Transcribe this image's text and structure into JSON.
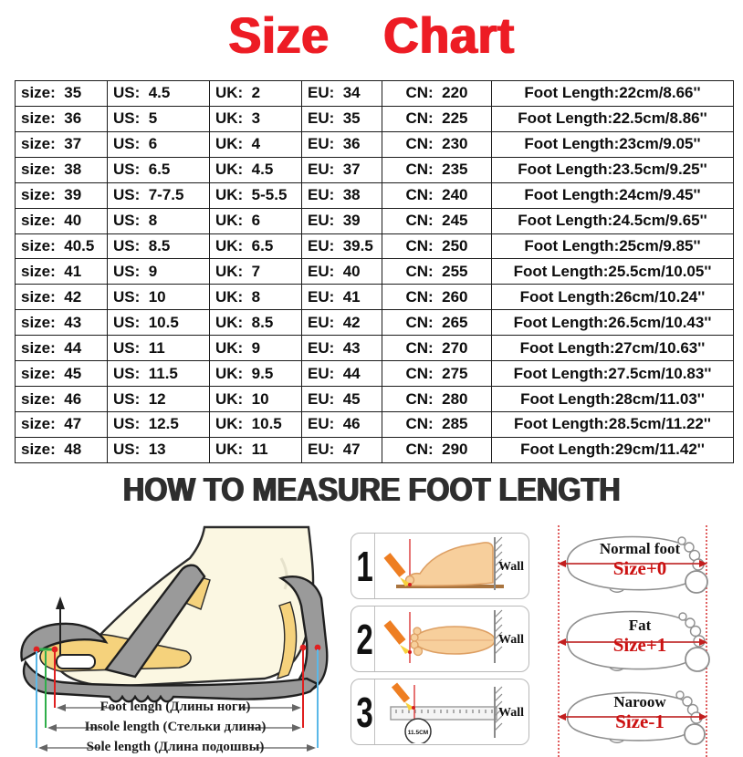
{
  "title": "Size Chart",
  "how_to_title": "HOW TO MEASURE FOOT LENGTH",
  "colors": {
    "title_red": "#ed1c24",
    "heading_dark": "#2e2e2e",
    "size_label_red": "#cc1111",
    "measure_red": "#e02020",
    "measure_green": "#2fae4a",
    "measure_blue": "#5bb8e8"
  },
  "size_table": {
    "rows": [
      [
        "size:  35",
        "US:  4.5",
        "UK:  2",
        "EU:  34",
        "CN:  220",
        "Foot Length:22cm/8.66''"
      ],
      [
        "size:  36",
        "US:  5",
        "UK:  3",
        "EU:  35",
        "CN:  225",
        "Foot Length:22.5cm/8.86''"
      ],
      [
        "size:  37",
        "US:  6",
        "UK:  4",
        "EU:  36",
        "CN:  230",
        "Foot Length:23cm/9.05''"
      ],
      [
        "size:  38",
        "US:  6.5",
        "UK:  4.5",
        "EU:  37",
        "CN:  235",
        "Foot Length:23.5cm/9.25''"
      ],
      [
        "size:  39",
        "US:  7-7.5",
        "UK:  5-5.5",
        "EU:  38",
        "CN:  240",
        "Foot Length:24cm/9.45''"
      ],
      [
        "size:  40",
        "US:  8",
        "UK:  6",
        "EU:  39",
        "CN:  245",
        "Foot Length:24.5cm/9.65''"
      ],
      [
        "size:  40.5",
        "US:  8.5",
        "UK:  6.5",
        "EU:  39.5",
        "CN:  250",
        "Foot Length:25cm/9.85''"
      ],
      [
        "size:  41",
        "US:  9",
        "UK:  7",
        "EU:  40",
        "CN:  255",
        "Foot Length:25.5cm/10.05''"
      ],
      [
        "size:  42",
        "US:  10",
        "UK:  8",
        "EU:  41",
        "CN:  260",
        "Foot Length:26cm/10.24''"
      ],
      [
        "size:  43",
        "US:  10.5",
        "UK:  8.5",
        "EU:  42",
        "CN:  265",
        "Foot Length:26.5cm/10.43''"
      ],
      [
        "size:  44",
        "US:  11",
        "UK:  9",
        "EU:  43",
        "CN:  270",
        "Foot Length:27cm/10.63''"
      ],
      [
        "size:  45",
        "US:  11.5",
        "UK:  9.5",
        "EU:  44",
        "CN:  275",
        "Foot Length:27.5cm/10.83''"
      ],
      [
        "size:  46",
        "US:  12",
        "UK:  10",
        "EU:  45",
        "CN:  280",
        "Foot Length:28cm/11.03''"
      ],
      [
        "size:  47",
        "US:  12.5",
        "UK:  10.5",
        "EU:  46",
        "CN:  285",
        "Foot Length:28.5cm/11.22''"
      ],
      [
        "size:  48",
        "US:  13",
        "UK:  11",
        "EU:  47",
        "CN:  290",
        "Foot Length:29cm/11.42''"
      ]
    ]
  },
  "measure_diagram": {
    "labels": [
      "Foot lengh (Длины ноги)",
      "Insole length (Стельки длина)",
      "Sole length (Длина подошвы)"
    ]
  },
  "steps": [
    {
      "number": "1",
      "wall_label": "Wall"
    },
    {
      "number": "2",
      "wall_label": "Wall"
    },
    {
      "number": "3",
      "wall_label": "Wall",
      "ruler_value": "11.5CM"
    }
  ],
  "foot_types": [
    {
      "name": "Normal foot",
      "size_label": "Size+0"
    },
    {
      "name": "Fat",
      "size_label": "Size+1"
    },
    {
      "name": "Naroow",
      "size_label": "Size-1"
    }
  ]
}
